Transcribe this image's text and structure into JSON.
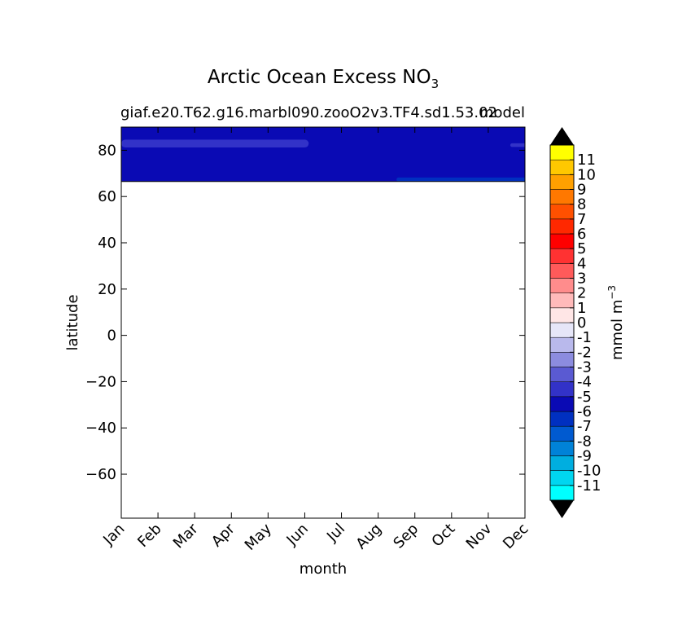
{
  "chart_data": {
    "type": "heatmap",
    "title_main": "Arctic Ocean Excess NO",
    "title_sub": "3",
    "subtitle_left": "giaf.e20.T62.g16.marbl090.zooO2v3.TF4.sd1.53.02",
    "subtitle_right": "model",
    "xlabel": "month",
    "ylabel": "latitude",
    "x_categories": [
      "Jan",
      "Feb",
      "Mar",
      "Apr",
      "May",
      "Jun",
      "Jul",
      "Aug",
      "Sep",
      "Oct",
      "Nov",
      "Dec"
    ],
    "y_ticks": [
      80,
      60,
      40,
      20,
      0,
      -20,
      -40,
      -60
    ],
    "y_tick_labels": [
      "80",
      "60",
      "40",
      "20",
      "0",
      "−20",
      "−40",
      "−60"
    ],
    "ylim": [
      -79,
      90
    ],
    "data_lat_range": [
      66.5,
      90
    ],
    "colorbar": {
      "label": "mmol m",
      "label_sup": "−3",
      "levels": [
        -11,
        -10,
        -9,
        -8,
        -7,
        -6,
        -5,
        -4,
        -3,
        -2,
        -1,
        0,
        1,
        2,
        3,
        4,
        5,
        6,
        7,
        8,
        9,
        10,
        11
      ],
      "labels": [
        "-11",
        "-10",
        "-9",
        "-8",
        "-7",
        "-6",
        "-5",
        "-4",
        "-3",
        "-2",
        "-1",
        "0",
        "1",
        "2",
        "3",
        "4",
        "5",
        "6",
        "7",
        "8",
        "9",
        "10",
        "11"
      ],
      "colors": [
        "#00ffff",
        "#00d6f0",
        "#00aee0",
        "#0082d8",
        "#005ad0",
        "#0030c0",
        "#0a0ab4",
        "#3232c8",
        "#5a5ad2",
        "#8c8cdf",
        "#b9b9ec",
        "#e6e6f8",
        "#ffe6e6",
        "#ffbaba",
        "#ff8c8c",
        "#ff5a5a",
        "#ff3232",
        "#ff0000",
        "#ff2800",
        "#ff5000",
        "#ff7800",
        "#ffa000",
        "#ffc800",
        "#ffff00"
      ],
      "extend_min_color": "#000000",
      "extend_max_color": "#000000"
    },
    "field": {
      "background_color": "#0a0ab4",
      "features": [
        {
          "name": "high-lat-band",
          "color": "#3232c8",
          "months": [
            0,
            5
          ],
          "lat": [
            81.2,
            84.6
          ]
        },
        {
          "name": "dec-band",
          "color": "#3232c8",
          "months": [
            10.6,
            11
          ],
          "lat": [
            81.4,
            83.0
          ]
        },
        {
          "name": "sep-dec-band",
          "color": "#0030c0",
          "months": [
            7.5,
            11
          ],
          "lat": [
            66.5,
            68.2
          ]
        }
      ]
    }
  }
}
